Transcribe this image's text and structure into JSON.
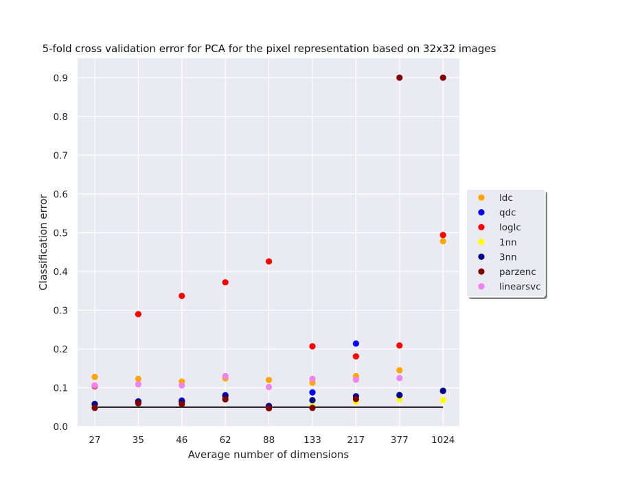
{
  "chart_data": {
    "type": "scatter",
    "title": "5-fold cross validation error for PCA for the pixel representation based on 32x32 images",
    "xlabel": "Average number of dimensions",
    "ylabel": "Classification error",
    "categories": [
      "27",
      "35",
      "46",
      "62",
      "88",
      "133",
      "217",
      "377",
      "1024"
    ],
    "ylim": [
      0,
      0.95
    ],
    "yticks": [
      0.0,
      0.1,
      0.2,
      0.3,
      0.4,
      0.5,
      0.6,
      0.7,
      0.8,
      0.9
    ],
    "ytick_labels": [
      "0.0",
      "0.1",
      "0.2",
      "0.3",
      "0.4",
      "0.5",
      "0.6",
      "0.7",
      "0.8",
      "0.9"
    ],
    "grid": true,
    "background": "#eaeaf2",
    "legend_position": "right",
    "series": [
      {
        "name": "ldc",
        "color": "#ffa500",
        "values": [
          0.128,
          0.123,
          0.116,
          0.124,
          0.12,
          0.113,
          0.13,
          0.145,
          0.478
        ]
      },
      {
        "name": "qdc",
        "color": "#0000ff",
        "values": [
          0.058,
          0.065,
          0.067,
          0.081,
          0.053,
          0.088,
          0.214,
          0.081,
          0.092
        ]
      },
      {
        "name": "loglc",
        "color": "#ff0000",
        "values": [
          0.104,
          0.29,
          0.337,
          0.372,
          0.426,
          0.207,
          0.181,
          0.209,
          0.494
        ]
      },
      {
        "name": "1nn",
        "color": "#ffff00",
        "values": [
          0.05,
          0.062,
          0.06,
          0.075,
          0.05,
          0.053,
          0.064,
          0.07,
          0.068
        ]
      },
      {
        "name": "3nn",
        "color": "#00008b",
        "values": [
          0.058,
          0.064,
          0.064,
          0.078,
          0.053,
          0.068,
          0.078,
          0.081,
          0.092
        ]
      },
      {
        "name": "parzenc",
        "color": "#800000",
        "values": [
          0.048,
          0.06,
          0.058,
          0.07,
          0.047,
          0.048,
          0.071,
          0.9,
          0.9
        ]
      },
      {
        "name": "linearsvc",
        "color": "#ee82ee",
        "values": [
          0.106,
          0.109,
          0.106,
          0.13,
          0.102,
          0.123,
          0.121,
          0.125,
          null
        ]
      }
    ],
    "reference_line": {
      "y": 0.05,
      "from": "27",
      "to": "1024",
      "color": "#000000"
    }
  }
}
